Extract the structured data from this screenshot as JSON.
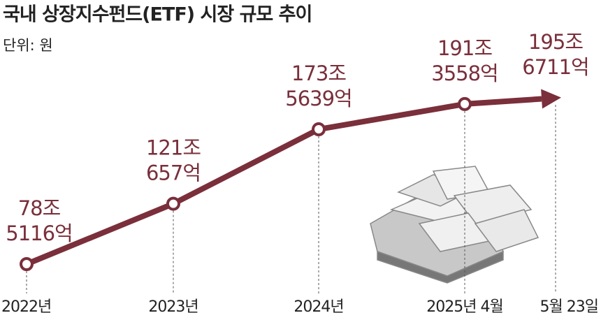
{
  "chart_data": {
    "type": "line",
    "title": "국내 상장지수펀드(ETF) 시장 규모 추이",
    "subtitle": "단위: 원",
    "categories": [
      "2022년",
      "2023년",
      "2024년",
      "2025년 4월",
      "5월 23일"
    ],
    "values": [
      78.5116,
      121.0657,
      173.5639,
      191.3558,
      195.6711
    ],
    "value_labels": [
      "78조 5116억",
      "121조 657억",
      "173조 5639억",
      "191조 3558억",
      "195조 6711억"
    ],
    "color": "#7a2f3b"
  }
}
